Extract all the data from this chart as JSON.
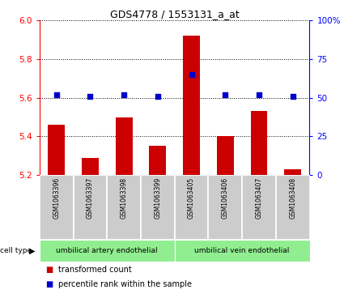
{
  "title": "GDS4778 / 1553131_a_at",
  "samples": [
    "GSM1063396",
    "GSM1063397",
    "GSM1063398",
    "GSM1063399",
    "GSM1063405",
    "GSM1063406",
    "GSM1063407",
    "GSM1063408"
  ],
  "transformed_counts": [
    5.46,
    5.29,
    5.5,
    5.35,
    5.92,
    5.4,
    5.53,
    5.23
  ],
  "percentile_ranks": [
    52,
    51,
    52,
    51,
    65,
    52,
    52,
    51
  ],
  "ylim_left": [
    5.2,
    6.0
  ],
  "ylim_right": [
    0,
    100
  ],
  "yticks_left": [
    5.2,
    5.4,
    5.6,
    5.8,
    6.0
  ],
  "yticks_right": [
    0,
    25,
    50,
    75,
    100
  ],
  "ytick_labels_right": [
    "0",
    "25",
    "50",
    "75",
    "100%"
  ],
  "bar_color": "#cc0000",
  "dot_color": "#0000cc",
  "cell_type_labels": [
    "umbilical artery endothelial",
    "umbilical vein endothelial"
  ],
  "cell_type_color": "#90ee90",
  "sample_box_color": "#cccccc",
  "legend_labels": [
    "transformed count",
    "percentile rank within the sample"
  ],
  "legend_colors": [
    "#cc0000",
    "#0000cc"
  ],
  "bar_width": 0.5
}
